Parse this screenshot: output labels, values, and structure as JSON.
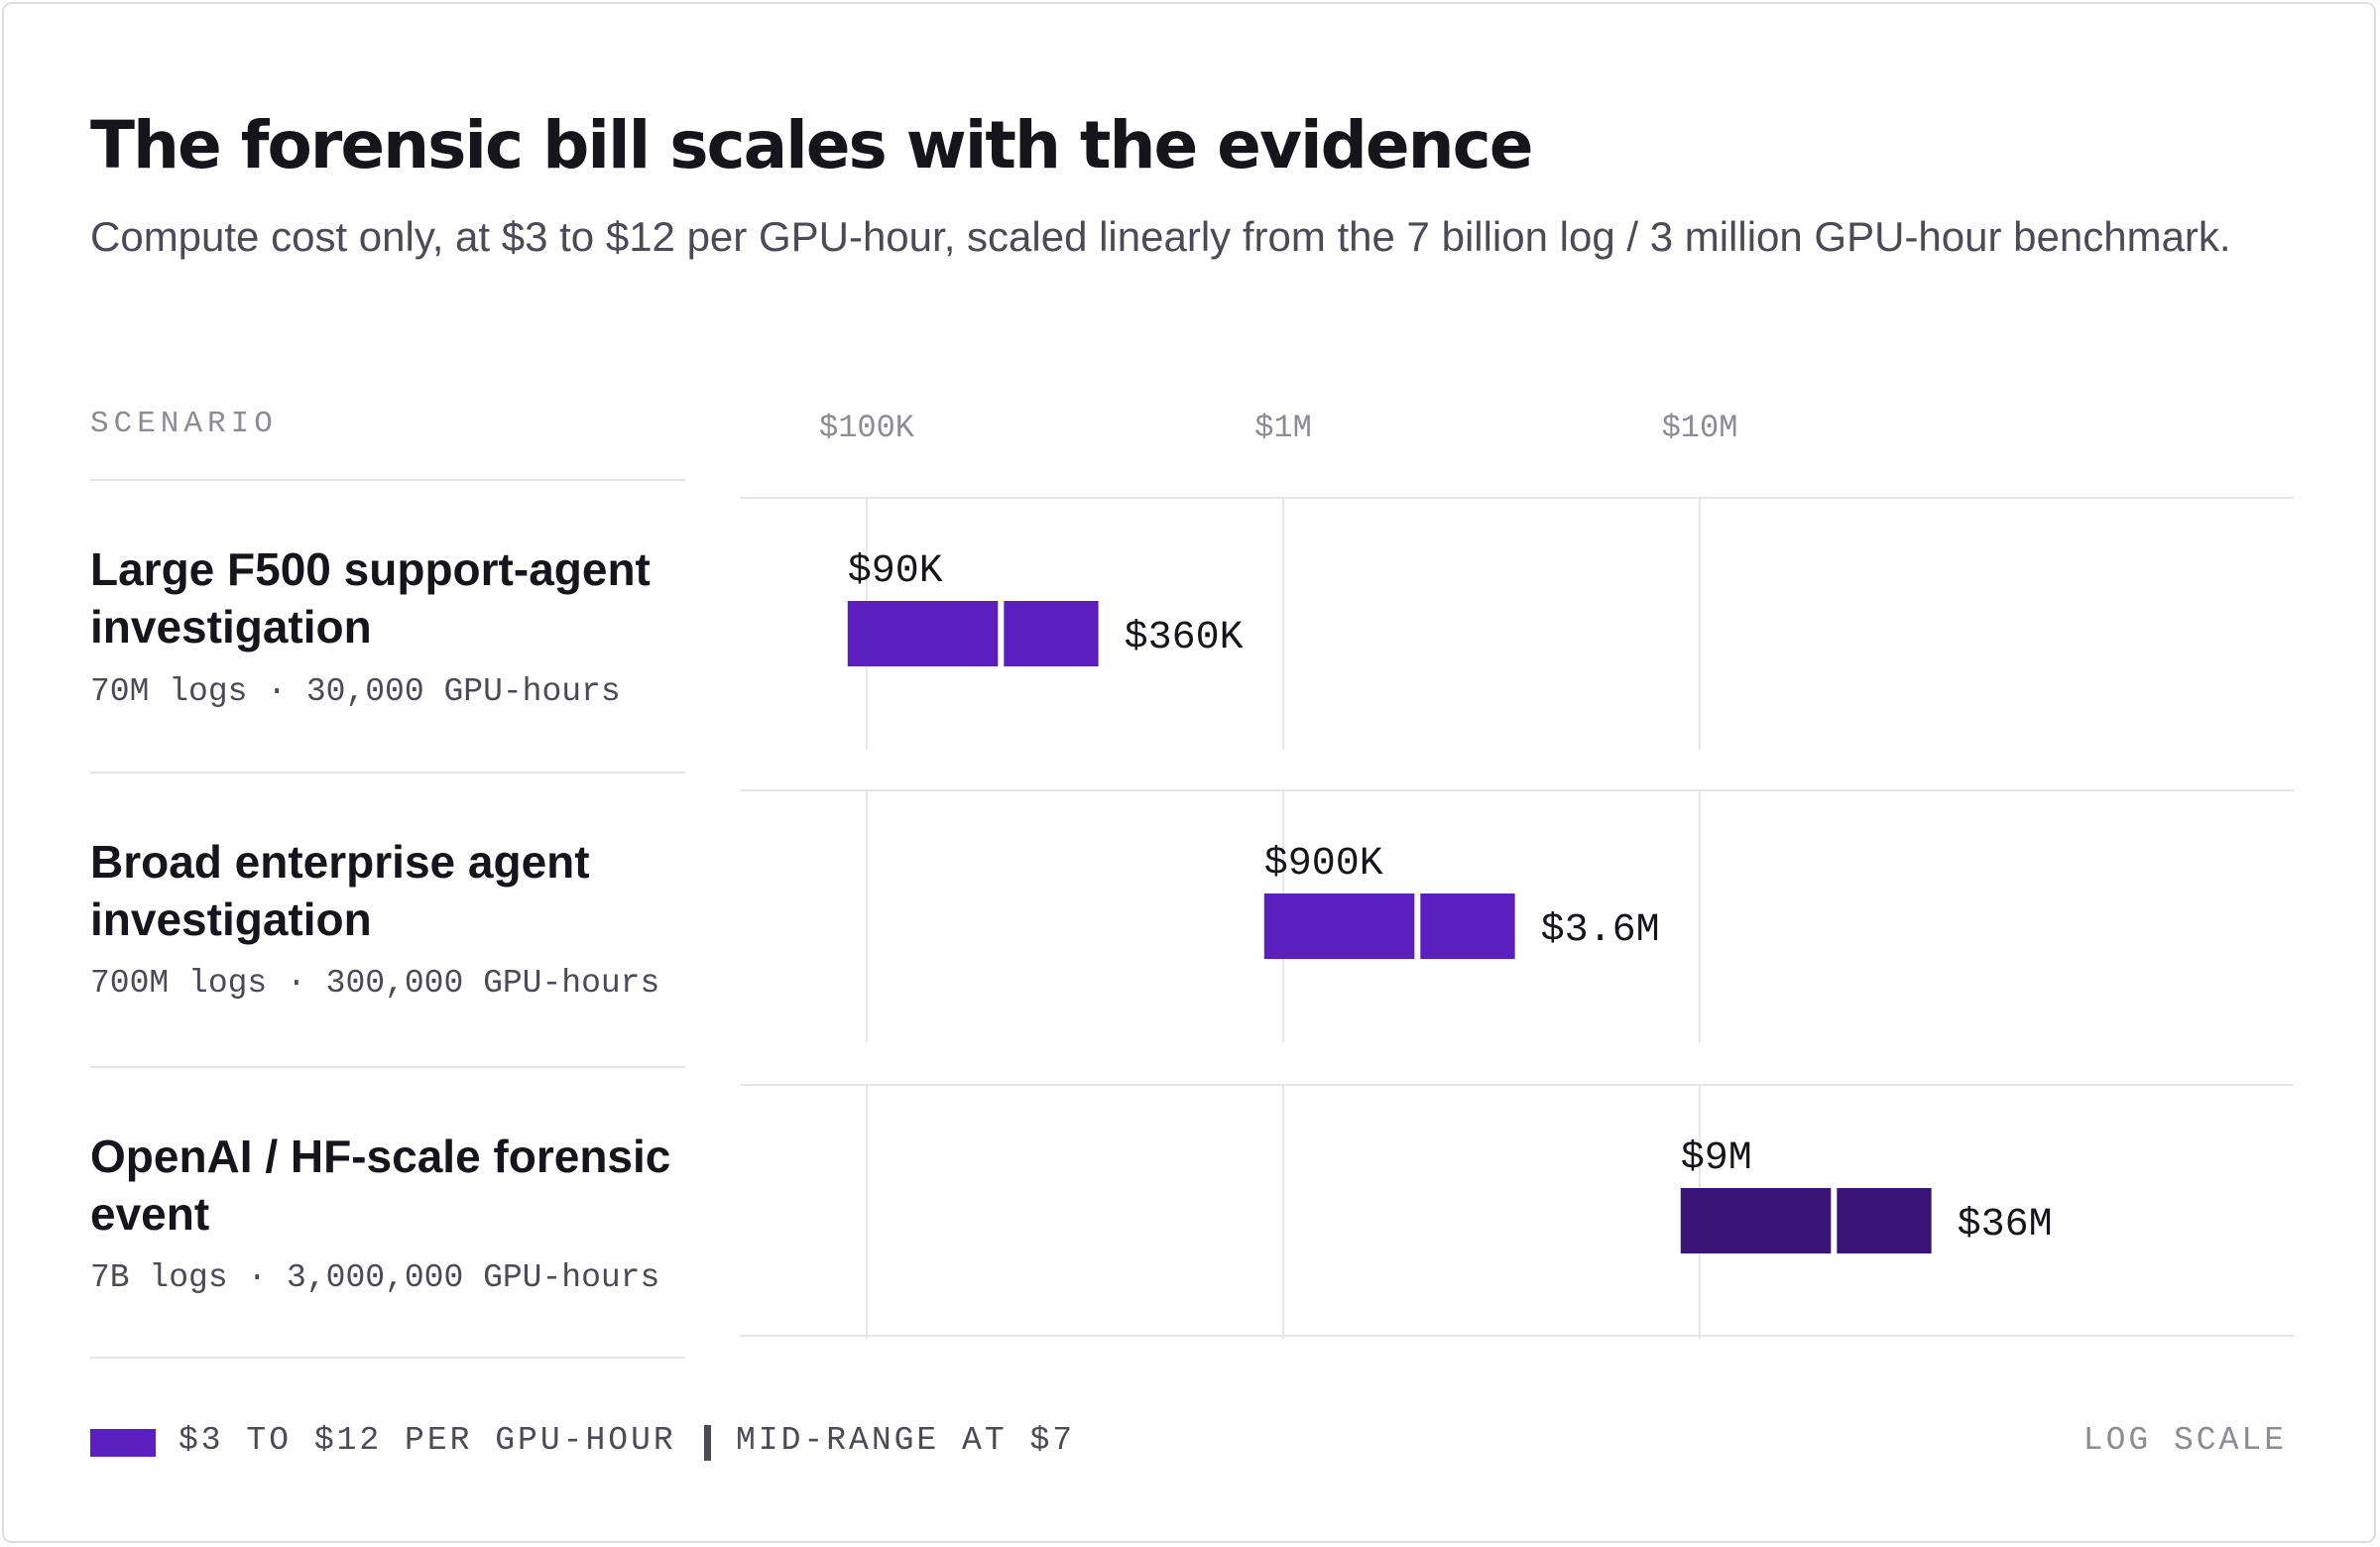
{
  "header": {
    "title": "The forensic bill scales with the evidence",
    "subtitle": "Compute cost only, at $3 to $12 per GPU-hour, scaled linearly from the 7 billion log / 3 million GPU-hour benchmark."
  },
  "table": {
    "scenario_header": "SCENARIO",
    "rows": [
      {
        "title": "Large F500 support-agent investigation",
        "meta": "70M logs · 30,000 GPU-hours"
      },
      {
        "title": "Broad enterprise agent investigation",
        "meta": "700M logs · 300,000 GPU-hours"
      },
      {
        "title": "OpenAI / HF-scale forensic event",
        "meta": "7B logs · 3,000,000 GPU-hours"
      }
    ]
  },
  "legend": {
    "range_label": "$3 TO $12 PER GPU-HOUR",
    "mid_label": "MID-RANGE AT $7",
    "scale_label": "LOG SCALE"
  },
  "colors": {
    "bar_primary": "#5b1fbf",
    "bar_dark": "#3a1577",
    "divider": "#ffffff",
    "grid": "#e6e5e9"
  },
  "chart_data": {
    "type": "bar",
    "orientation": "horizontal-range",
    "scale": "log",
    "xlim": [
      50000,
      40000000
    ],
    "ticks": [
      {
        "value": 100000,
        "label": "$100K"
      },
      {
        "value": 1000000,
        "label": "$1M"
      },
      {
        "value": 10000000,
        "label": "$10M"
      }
    ],
    "categories": [
      "Large F500 support-agent investigation",
      "Broad enterprise agent investigation",
      "OpenAI / HF-scale forensic event"
    ],
    "series": [
      {
        "name": "$3 TO $12 PER GPU-HOUR",
        "low": [
          90000,
          900000,
          9000000
        ],
        "high": [
          360000,
          3600000,
          36000000
        ],
        "mid": [
          210000,
          2100000,
          21000000
        ]
      }
    ],
    "low_labels": [
      "$90K",
      "$900K",
      "$9M"
    ],
    "high_labels": [
      "$360K",
      "$3.6M",
      "$36M"
    ],
    "highlight": [
      false,
      false,
      true
    ]
  }
}
